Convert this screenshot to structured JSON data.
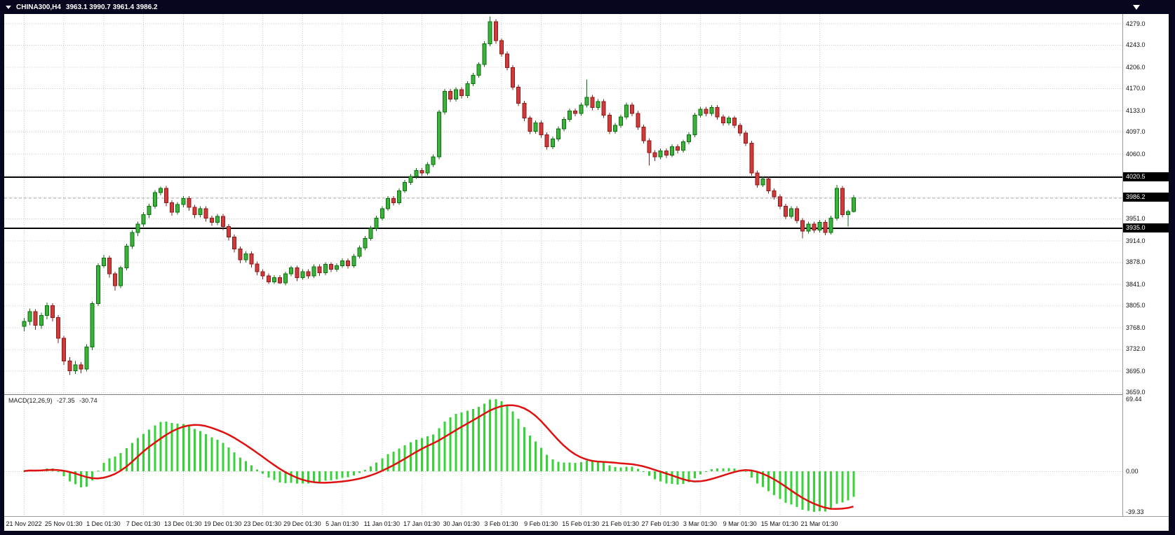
{
  "window": {
    "title_symbol": "CHINA300,H4",
    "ohlc_text": "3963.1 3990.7 3961.4 3986.2"
  },
  "indicator_caption": {
    "name": "MACD(12,26,9)",
    "main_value": "-27.35",
    "signal_value": "-30.74"
  },
  "colors": {
    "frame": "#06061e",
    "chart_bg": "#ffffff",
    "grid": "#c8c8c8",
    "bull": "#3bb23b",
    "bull_border": "#0e6f0e",
    "bear": "#cf3a3a",
    "bear_border": "#8e1a1a",
    "histogram": "#37d437",
    "signal_line": "#e01010",
    "level_line": "#000000",
    "current_price_line": "#b0b0b0",
    "badge_bg": "#000000",
    "badge_text": "#ffffff"
  },
  "chart_data": {
    "type": "candlestick",
    "title": "CHINA300,H4",
    "symbol": "CHINA300",
    "timeframe": "H4",
    "bars_per_label_interval": 7,
    "x_labels": [
      "21 Nov 2022",
      "25 Nov 01:30",
      "1 Dec 01:30",
      "7 Dec 01:30",
      "13 Dec 01:30",
      "19 Dec 01:30",
      "23 Dec 01:30",
      "29 Dec 01:30",
      "5 Jan 01:30",
      "11 Jan 01:30",
      "17 Jan 01:30",
      "30 Jan 01:30",
      "3 Feb 01:30",
      "9 Feb 01:30",
      "15 Feb 01:30",
      "21 Feb 01:30",
      "27 Feb 01:30",
      "3 Mar 01:30",
      "9 Mar 01:30",
      "15 Mar 01:30",
      "21 Mar 01:30"
    ],
    "y_axis": {
      "min": 3657,
      "max": 4295,
      "ticks": [
        {
          "v": 4279,
          "label": "4279.0"
        },
        {
          "v": 4243,
          "label": "4243.0"
        },
        {
          "v": 4206,
          "label": "4206.0"
        },
        {
          "v": 4170,
          "label": "4170.0"
        },
        {
          "v": 4133,
          "label": "4133.0"
        },
        {
          "v": 4097,
          "label": "4097.0"
        },
        {
          "v": 4060,
          "label": "4060.0"
        },
        {
          "v": 4024,
          "label": ""
        },
        {
          "v": 3987,
          "label": ""
        },
        {
          "v": 3951,
          "label": "3951.0"
        },
        {
          "v": 3914,
          "label": "3914.0"
        },
        {
          "v": 3878,
          "label": "3878.0"
        },
        {
          "v": 3841,
          "label": "3841.0"
        },
        {
          "v": 3805,
          "label": "3805.0"
        },
        {
          "v": 3768,
          "label": "3768.0"
        },
        {
          "v": 3732,
          "label": "3732.0"
        },
        {
          "v": 3695,
          "label": "3695.0"
        },
        {
          "v": 3659,
          "label": "3659.0"
        }
      ]
    },
    "levels": [
      {
        "value": 4020.5,
        "label": "4020.5"
      },
      {
        "value": 3935.0,
        "label": "3935.0"
      }
    ],
    "current_price": {
      "value": 3986.2,
      "label": "3986.2"
    },
    "ohlc": [
      [
        3770,
        3784,
        3762,
        3778
      ],
      [
        3778,
        3800,
        3772,
        3795
      ],
      [
        3795,
        3799,
        3764,
        3772
      ],
      [
        3772,
        3793,
        3766,
        3788
      ],
      [
        3788,
        3810,
        3782,
        3805
      ],
      [
        3805,
        3809,
        3778,
        3785
      ],
      [
        3785,
        3789,
        3742,
        3750
      ],
      [
        3750,
        3754,
        3705,
        3712
      ],
      [
        3712,
        3718,
        3688,
        3695
      ],
      [
        3695,
        3712,
        3690,
        3705
      ],
      [
        3705,
        3710,
        3691,
        3698
      ],
      [
        3698,
        3740,
        3694,
        3735
      ],
      [
        3735,
        3812,
        3730,
        3808
      ],
      [
        3808,
        3876,
        3804,
        3872
      ],
      [
        3872,
        3890,
        3868,
        3885
      ],
      [
        3885,
        3889,
        3852,
        3858
      ],
      [
        3858,
        3862,
        3830,
        3838
      ],
      [
        3838,
        3872,
        3834,
        3868
      ],
      [
        3868,
        3909,
        3864,
        3905
      ],
      [
        3905,
        3932,
        3900,
        3928
      ],
      [
        3928,
        3946,
        3922,
        3942
      ],
      [
        3942,
        3962,
        3937,
        3958
      ],
      [
        3958,
        3976,
        3952,
        3972
      ],
      [
        3972,
        3999,
        3968,
        3995
      ],
      [
        3995,
        4005,
        3990,
        4002
      ],
      [
        4002,
        4006,
        3972,
        3978
      ],
      [
        3978,
        3982,
        3956,
        3962
      ],
      [
        3962,
        3979,
        3958,
        3975
      ],
      [
        3975,
        3989,
        3970,
        3985
      ],
      [
        3985,
        3989,
        3964,
        3970
      ],
      [
        3970,
        3974,
        3952,
        3958
      ],
      [
        3958,
        3972,
        3953,
        3968
      ],
      [
        3968,
        3972,
        3946,
        3952
      ],
      [
        3952,
        3956,
        3939,
        3945
      ],
      [
        3945,
        3959,
        3940,
        3955
      ],
      [
        3955,
        3959,
        3932,
        3938
      ],
      [
        3938,
        3942,
        3914,
        3920
      ],
      [
        3920,
        3924,
        3894,
        3900
      ],
      [
        3900,
        3904,
        3876,
        3882
      ],
      [
        3882,
        3896,
        3877,
        3892
      ],
      [
        3892,
        3896,
        3869,
        3875
      ],
      [
        3875,
        3879,
        3856,
        3862
      ],
      [
        3862,
        3866,
        3849,
        3855
      ],
      [
        3855,
        3859,
        3841,
        3845
      ],
      [
        3845,
        3856,
        3841,
        3852
      ],
      [
        3852,
        3856,
        3841,
        3843
      ],
      [
        3843,
        3862,
        3839,
        3858
      ],
      [
        3858,
        3872,
        3854,
        3868
      ],
      [
        3868,
        3872,
        3846,
        3852
      ],
      [
        3852,
        3866,
        3848,
        3862
      ],
      [
        3862,
        3866,
        3850,
        3855
      ],
      [
        3855,
        3874,
        3851,
        3870
      ],
      [
        3870,
        3874,
        3855,
        3860
      ],
      [
        3860,
        3878,
        3856,
        3874
      ],
      [
        3874,
        3878,
        3861,
        3866
      ],
      [
        3866,
        3876,
        3862,
        3872
      ],
      [
        3872,
        3884,
        3868,
        3880
      ],
      [
        3880,
        3884,
        3867,
        3872
      ],
      [
        3872,
        3892,
        3868,
        3888
      ],
      [
        3888,
        3906,
        3884,
        3902
      ],
      [
        3902,
        3922,
        3898,
        3918
      ],
      [
        3918,
        3939,
        3914,
        3935
      ],
      [
        3935,
        3956,
        3930,
        3952
      ],
      [
        3952,
        3972,
        3948,
        3968
      ],
      [
        3968,
        3989,
        3964,
        3985
      ],
      [
        3985,
        3989,
        3973,
        3978
      ],
      [
        3978,
        4002,
        3974,
        3998
      ],
      [
        3998,
        4016,
        3994,
        4012
      ],
      [
        4012,
        4026,
        4008,
        4022
      ],
      [
        4022,
        4036,
        4018,
        4032
      ],
      [
        4032,
        4036,
        4023,
        4028
      ],
      [
        4028,
        4046,
        4024,
        4042
      ],
      [
        4042,
        4059,
        4038,
        4055
      ],
      [
        4055,
        4134,
        4051,
        4130
      ],
      [
        4130,
        4169,
        4126,
        4165
      ],
      [
        4165,
        4169,
        4147,
        4152
      ],
      [
        4152,
        4172,
        4148,
        4168
      ],
      [
        4168,
        4172,
        4153,
        4158
      ],
      [
        4158,
        4182,
        4154,
        4178
      ],
      [
        4178,
        4196,
        4174,
        4192
      ],
      [
        4192,
        4214,
        4188,
        4210
      ],
      [
        4210,
        4249,
        4206,
        4245
      ],
      [
        4245,
        4291,
        4241,
        4282
      ],
      [
        4282,
        4286,
        4245,
        4250
      ],
      [
        4250,
        4254,
        4223,
        4228
      ],
      [
        4228,
        4232,
        4200,
        4205
      ],
      [
        4205,
        4209,
        4167,
        4172
      ],
      [
        4172,
        4176,
        4140,
        4145
      ],
      [
        4145,
        4149,
        4115,
        4120
      ],
      [
        4120,
        4124,
        4093,
        4098
      ],
      [
        4098,
        4116,
        4094,
        4112
      ],
      [
        4112,
        4116,
        4087,
        4092
      ],
      [
        4092,
        4096,
        4067,
        4072
      ],
      [
        4072,
        4089,
        4068,
        4085
      ],
      [
        4085,
        4106,
        4081,
        4102
      ],
      [
        4102,
        4122,
        4098,
        4118
      ],
      [
        4118,
        4136,
        4114,
        4132
      ],
      [
        4132,
        4136,
        4123,
        4128
      ],
      [
        4128,
        4146,
        4124,
        4142
      ],
      [
        4142,
        4185,
        4138,
        4155
      ],
      [
        4155,
        4159,
        4133,
        4138
      ],
      [
        4138,
        4152,
        4134,
        4148
      ],
      [
        4148,
        4152,
        4120,
        4125
      ],
      [
        4125,
        4129,
        4093,
        4098
      ],
      [
        4098,
        4112,
        4094,
        4108
      ],
      [
        4108,
        4126,
        4104,
        4122
      ],
      [
        4122,
        4146,
        4118,
        4142
      ],
      [
        4142,
        4146,
        4123,
        4128
      ],
      [
        4128,
        4132,
        4100,
        4105
      ],
      [
        4105,
        4109,
        4077,
        4082
      ],
      [
        4082,
        4086,
        4040,
        4062
      ],
      [
        4062,
        4066,
        4048,
        4055
      ],
      [
        4055,
        4069,
        4051,
        4065
      ],
      [
        4065,
        4069,
        4053,
        4058
      ],
      [
        4058,
        4076,
        4054,
        4072
      ],
      [
        4072,
        4076,
        4061,
        4066
      ],
      [
        4066,
        4084,
        4062,
        4080
      ],
      [
        4080,
        4096,
        4076,
        4092
      ],
      [
        4092,
        4129,
        4088,
        4125
      ],
      [
        4125,
        4139,
        4121,
        4135
      ],
      [
        4135,
        4139,
        4123,
        4128
      ],
      [
        4128,
        4142,
        4124,
        4138
      ],
      [
        4138,
        4142,
        4117,
        4122
      ],
      [
        4122,
        4126,
        4107,
        4112
      ],
      [
        4112,
        4124,
        4108,
        4120
      ],
      [
        4120,
        4124,
        4103,
        4108
      ],
      [
        4108,
        4112,
        4090,
        4095
      ],
      [
        4095,
        4099,
        4073,
        4078
      ],
      [
        4078,
        4082,
        4023,
        4028
      ],
      [
        4028,
        4032,
        4003,
        4008
      ],
      [
        4008,
        4022,
        4004,
        4018
      ],
      [
        4018,
        4022,
        3993,
        3998
      ],
      [
        3998,
        4002,
        3983,
        3988
      ],
      [
        3988,
        3992,
        3967,
        3972
      ],
      [
        3972,
        3976,
        3950,
        3955
      ],
      [
        3955,
        3972,
        3951,
        3968
      ],
      [
        3968,
        3972,
        3943,
        3948
      ],
      [
        3948,
        3952,
        3918,
        3930
      ],
      [
        3930,
        3946,
        3926,
        3942
      ],
      [
        3942,
        3946,
        3927,
        3932
      ],
      [
        3932,
        3949,
        3928,
        3945
      ],
      [
        3945,
        3949,
        3923,
        3928
      ],
      [
        3928,
        3956,
        3924,
        3952
      ],
      [
        3952,
        4008,
        3948,
        4002
      ],
      [
        4002,
        4006,
        3953,
        3958
      ],
      [
        3958,
        3966,
        3938,
        3963
      ],
      [
        3963.1,
        3990.7,
        3961.4,
        3986.2
      ]
    ],
    "macd": {
      "name": "MACD",
      "fast": 12,
      "slow": 26,
      "signal": 9,
      "display_main": -27.35,
      "display_signal": -30.74,
      "axis_labels": [
        {
          "text": "69.44",
          "value": 69.44
        },
        {
          "text": "0.00",
          "value": 0
        },
        {
          "text": "-39.33",
          "value": -39.33
        }
      ]
    }
  }
}
